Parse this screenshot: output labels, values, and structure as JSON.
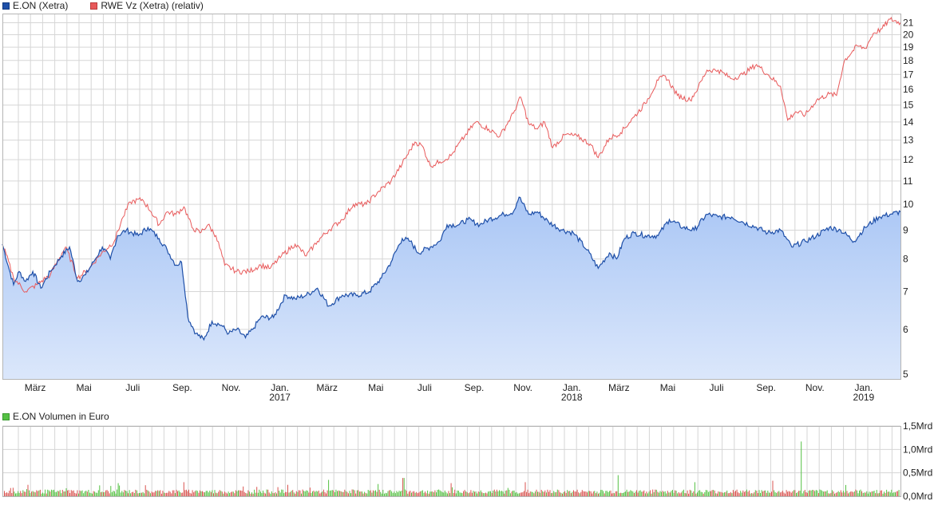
{
  "colors": {
    "eon_line": "#1e4fa8",
    "eon_fill_top": "#a9c6f5",
    "eon_fill_bottom": "#dbe7fb",
    "rwe_line": "#e8595a",
    "vol_up": "#55c144",
    "vol_down": "#d9534f",
    "grid": "#d6d6d6",
    "frame": "#b5b5b5"
  },
  "legend": {
    "eon": "E.ON (Xetra)",
    "rwe": "RWE Vz (Xetra) (relativ)",
    "volume": "E.ON Volumen in Euro"
  },
  "chart_data": [
    {
      "type": "line",
      "x_axis": {
        "months": [
          "März",
          "Mai",
          "Juli",
          "Sep.",
          "Nov.",
          "Jan.",
          "März",
          "Mai",
          "Juli",
          "Sep.",
          "Nov.",
          "Jan.",
          "März",
          "Mai",
          "Juli",
          "Sep.",
          "Nov.",
          "Jan."
        ],
        "years": [
          "2017",
          "2018",
          "2019"
        ],
        "range": [
          "2016-02-01",
          "2019-02-28"
        ]
      },
      "y_axis": {
        "scale": "log",
        "range": [
          4.9,
          21.8
        ],
        "ticks": [
          5,
          6,
          7,
          8,
          9,
          10,
          11,
          12,
          13,
          14,
          15,
          16,
          17,
          18,
          19,
          20,
          21
        ],
        "position": "right"
      },
      "grid": true,
      "series": [
        {
          "name": "E.ON (Xetra)",
          "style": "area",
          "points": [
            [
              "2016-02-01",
              8.5
            ],
            [
              "2016-02-08",
              7.8
            ],
            [
              "2016-02-15",
              7.2
            ],
            [
              "2016-02-22",
              7.6
            ],
            [
              "2016-03-01",
              7.3
            ],
            [
              "2016-03-10",
              7.6
            ],
            [
              "2016-03-20",
              7.1
            ],
            [
              "2016-04-01",
              7.6
            ],
            [
              "2016-04-15",
              8.1
            ],
            [
              "2016-04-25",
              8.4
            ],
            [
              "2016-05-05",
              7.3
            ],
            [
              "2016-05-15",
              7.5
            ],
            [
              "2016-05-25",
              7.9
            ],
            [
              "2016-06-05",
              8.4
            ],
            [
              "2016-06-15",
              8.0
            ],
            [
              "2016-06-24",
              8.8
            ],
            [
              "2016-07-05",
              9.0
            ],
            [
              "2016-07-20",
              8.8
            ],
            [
              "2016-08-01",
              9.1
            ],
            [
              "2016-08-15",
              8.7
            ],
            [
              "2016-08-25",
              8.3
            ],
            [
              "2016-09-05",
              7.8
            ],
            [
              "2016-09-12",
              7.9
            ],
            [
              "2016-09-20",
              6.3
            ],
            [
              "2016-09-30",
              5.9
            ],
            [
              "2016-10-10",
              5.75
            ],
            [
              "2016-10-20",
              6.2
            ],
            [
              "2016-11-01",
              6.1
            ],
            [
              "2016-11-10",
              5.9
            ],
            [
              "2016-11-20",
              6.0
            ],
            [
              "2016-12-01",
              5.8
            ],
            [
              "2016-12-10",
              6.0
            ],
            [
              "2016-12-20",
              6.3
            ],
            [
              "2017-01-05",
              6.3
            ],
            [
              "2017-01-20",
              6.9
            ],
            [
              "2017-02-01",
              6.8
            ],
            [
              "2017-02-15",
              6.9
            ],
            [
              "2017-03-01",
              7.1
            ],
            [
              "2017-03-15",
              6.6
            ],
            [
              "2017-04-01",
              6.9
            ],
            [
              "2017-04-20",
              6.9
            ],
            [
              "2017-05-05",
              7.0
            ],
            [
              "2017-05-20",
              7.4
            ],
            [
              "2017-06-01",
              7.9
            ],
            [
              "2017-06-15",
              8.7
            ],
            [
              "2017-06-25",
              8.6
            ],
            [
              "2017-07-05",
              8.2
            ],
            [
              "2017-07-20",
              8.4
            ],
            [
              "2017-08-01",
              8.6
            ],
            [
              "2017-08-10",
              9.2
            ],
            [
              "2017-08-25",
              9.2
            ],
            [
              "2017-09-05",
              9.4
            ],
            [
              "2017-09-20",
              9.2
            ],
            [
              "2017-10-01",
              9.4
            ],
            [
              "2017-10-20",
              9.6
            ],
            [
              "2017-11-01",
              9.7
            ],
            [
              "2017-11-08",
              10.3
            ],
            [
              "2017-11-20",
              9.6
            ],
            [
              "2017-12-01",
              9.7
            ],
            [
              "2017-12-15",
              9.3
            ],
            [
              "2018-01-01",
              9.0
            ],
            [
              "2018-01-15",
              8.9
            ],
            [
              "2018-02-01",
              8.3
            ],
            [
              "2018-02-15",
              7.7
            ],
            [
              "2018-03-01",
              8.2
            ],
            [
              "2018-03-10",
              8.0
            ],
            [
              "2018-03-20",
              8.7
            ],
            [
              "2018-04-01",
              8.9
            ],
            [
              "2018-04-15",
              8.8
            ],
            [
              "2018-05-01",
              8.8
            ],
            [
              "2018-05-15",
              9.4
            ],
            [
              "2018-06-01",
              9.1
            ],
            [
              "2018-06-15",
              9.0
            ],
            [
              "2018-07-01",
              9.6
            ],
            [
              "2018-07-15",
              9.5
            ],
            [
              "2018-08-01",
              9.5
            ],
            [
              "2018-08-15",
              9.3
            ],
            [
              "2018-09-01",
              9.1
            ],
            [
              "2018-09-15",
              8.9
            ],
            [
              "2018-10-01",
              9.0
            ],
            [
              "2018-10-15",
              8.4
            ],
            [
              "2018-11-01",
              8.6
            ],
            [
              "2018-11-15",
              8.8
            ],
            [
              "2018-12-01",
              9.1
            ],
            [
              "2018-12-15",
              9.0
            ],
            [
              "2019-01-01",
              8.6
            ],
            [
              "2019-01-15",
              9.1
            ],
            [
              "2019-02-01",
              9.5
            ],
            [
              "2019-02-15",
              9.6
            ],
            [
              "2019-02-28",
              9.7
            ]
          ]
        },
        {
          "name": "RWE Vz (Xetra) (relativ)",
          "style": "line",
          "points": [
            [
              "2016-02-01",
              8.5
            ],
            [
              "2016-02-15",
              7.4
            ],
            [
              "2016-03-01",
              7.0
            ],
            [
              "2016-03-15",
              7.2
            ],
            [
              "2016-04-01",
              7.5
            ],
            [
              "2016-04-20",
              8.4
            ],
            [
              "2016-05-05",
              7.4
            ],
            [
              "2016-05-20",
              7.7
            ],
            [
              "2016-06-01",
              8.1
            ],
            [
              "2016-06-20",
              8.6
            ],
            [
              "2016-07-01",
              9.5
            ],
            [
              "2016-07-10",
              10.1
            ],
            [
              "2016-07-25",
              10.2
            ],
            [
              "2016-08-05",
              9.7
            ],
            [
              "2016-08-15",
              9.2
            ],
            [
              "2016-08-25",
              9.7
            ],
            [
              "2016-09-05",
              9.6
            ],
            [
              "2016-09-15",
              9.9
            ],
            [
              "2016-09-25",
              9.1
            ],
            [
              "2016-10-05",
              8.9
            ],
            [
              "2016-10-15",
              9.2
            ],
            [
              "2016-10-25",
              8.8
            ],
            [
              "2016-11-05",
              7.8
            ],
            [
              "2016-11-20",
              7.6
            ],
            [
              "2016-12-05",
              7.6
            ],
            [
              "2016-12-20",
              7.8
            ],
            [
              "2017-01-01",
              7.7
            ],
            [
              "2017-01-15",
              8.1
            ],
            [
              "2017-02-01",
              8.5
            ],
            [
              "2017-02-15",
              8.1
            ],
            [
              "2017-03-01",
              8.6
            ],
            [
              "2017-03-15",
              9.0
            ],
            [
              "2017-04-01",
              9.4
            ],
            [
              "2017-04-15",
              10.0
            ],
            [
              "2017-05-01",
              10.0
            ],
            [
              "2017-05-15",
              10.5
            ],
            [
              "2017-06-01",
              11.0
            ],
            [
              "2017-06-15",
              11.8
            ],
            [
              "2017-07-01",
              12.9
            ],
            [
              "2017-07-10",
              12.7
            ],
            [
              "2017-07-20",
              11.7
            ],
            [
              "2017-08-01",
              11.9
            ],
            [
              "2017-08-15",
              12.2
            ],
            [
              "2017-09-01",
              13.2
            ],
            [
              "2017-09-15",
              14.0
            ],
            [
              "2017-10-01",
              13.6
            ],
            [
              "2017-10-15",
              13.2
            ],
            [
              "2017-11-01",
              14.5
            ],
            [
              "2017-11-10",
              15.5
            ],
            [
              "2017-11-20",
              13.9
            ],
            [
              "2017-12-01",
              13.6
            ],
            [
              "2017-12-10",
              14.0
            ],
            [
              "2017-12-20",
              12.6
            ],
            [
              "2018-01-05",
              13.3
            ],
            [
              "2018-01-20",
              13.2
            ],
            [
              "2018-02-05",
              12.8
            ],
            [
              "2018-02-15",
              12.1
            ],
            [
              "2018-03-01",
              13.1
            ],
            [
              "2018-03-15",
              13.4
            ],
            [
              "2018-04-01",
              14.3
            ],
            [
              "2018-04-15",
              15.1
            ],
            [
              "2018-05-01",
              16.6
            ],
            [
              "2018-05-10",
              16.9
            ],
            [
              "2018-05-25",
              15.6
            ],
            [
              "2018-06-10",
              15.3
            ],
            [
              "2018-06-20",
              16.1
            ],
            [
              "2018-07-01",
              17.3
            ],
            [
              "2018-07-15",
              17.3
            ],
            [
              "2018-08-01",
              16.7
            ],
            [
              "2018-08-15",
              17.0
            ],
            [
              "2018-09-01",
              17.7
            ],
            [
              "2018-09-15",
              17.0
            ],
            [
              "2018-10-01",
              16.2
            ],
            [
              "2018-10-10",
              14.1
            ],
            [
              "2018-10-20",
              14.6
            ],
            [
              "2018-11-01",
              14.4
            ],
            [
              "2018-11-15",
              15.3
            ],
            [
              "2018-12-01",
              15.7
            ],
            [
              "2018-12-10",
              15.6
            ],
            [
              "2018-12-20",
              18.0
            ],
            [
              "2019-01-05",
              19.1
            ],
            [
              "2019-01-15",
              18.9
            ],
            [
              "2019-01-25",
              20.1
            ],
            [
              "2019-02-05",
              20.5
            ],
            [
              "2019-02-15",
              21.3
            ],
            [
              "2019-02-28",
              21.0
            ]
          ]
        }
      ]
    },
    {
      "type": "bar",
      "title": "E.ON Volumen in Euro",
      "y_axis": {
        "range": [
          0,
          1.5
        ],
        "ticks": [
          "0,0Mrd",
          "0,5Mrd",
          "1,0Mrd",
          "1,5Mrd"
        ],
        "tick_values": [
          0,
          0.5,
          1.0,
          1.5
        ],
        "unit": "Mrd",
        "position": "right"
      },
      "grid": true,
      "typical_volume": 0.12,
      "spikes": [
        [
          "2016-04-20",
          0.17
        ],
        [
          "2016-06-24",
          0.28
        ],
        [
          "2016-09-14",
          0.3
        ],
        [
          "2016-12-15",
          0.2
        ],
        [
          "2017-03-15",
          0.35
        ],
        [
          "2017-05-15",
          0.26
        ],
        [
          "2017-06-16",
          0.39
        ],
        [
          "2017-08-15",
          0.28
        ],
        [
          "2017-11-15",
          0.3
        ],
        [
          "2018-03-12",
          0.45
        ],
        [
          "2018-06-15",
          0.3
        ],
        [
          "2018-09-21",
          0.33
        ],
        [
          "2018-10-26",
          1.17
        ],
        [
          "2018-12-21",
          0.24
        ]
      ]
    }
  ]
}
